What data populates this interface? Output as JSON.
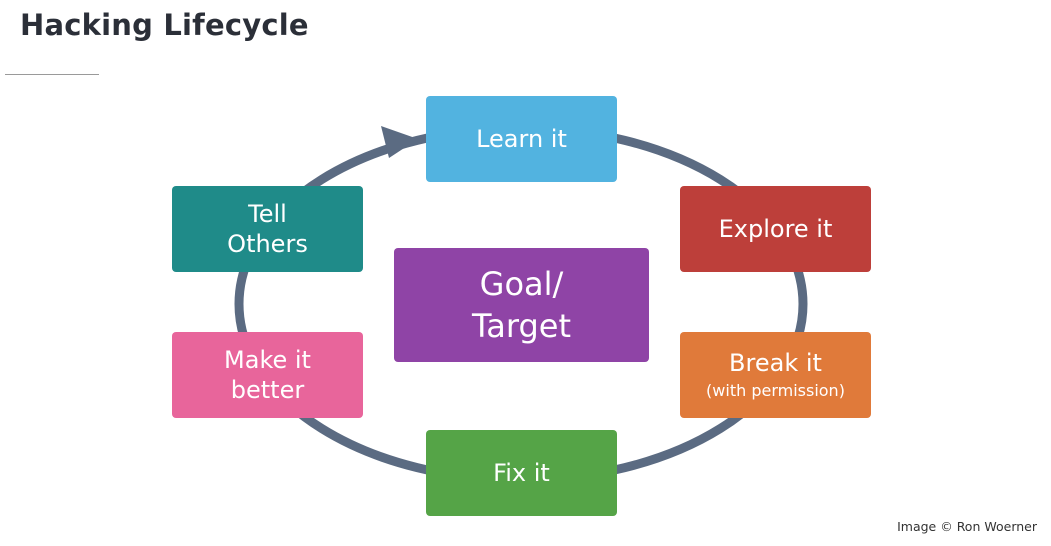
{
  "title": "Hacking Lifecycle",
  "credit": "Image © Ron Woerner",
  "colors": {
    "ring": "#5b6b82",
    "learn": "#52b3e0",
    "explore": "#bd3f3a",
    "break": "#e07a3a",
    "fix": "#55a447",
    "better": "#e8659b",
    "tell": "#1f8b89",
    "goal": "#8f44a6"
  },
  "nodes": {
    "learn": {
      "line1": "Learn it"
    },
    "explore": {
      "line1": "Explore it"
    },
    "break": {
      "line1": "Break it",
      "sub": "(with permission)"
    },
    "fix": {
      "line1": "Fix it"
    },
    "better": {
      "line1": "Make it",
      "line2": "better"
    },
    "tell": {
      "line1": "Tell",
      "line2": "Others"
    },
    "goal": {
      "line1": "Goal/",
      "line2": "Target"
    }
  }
}
